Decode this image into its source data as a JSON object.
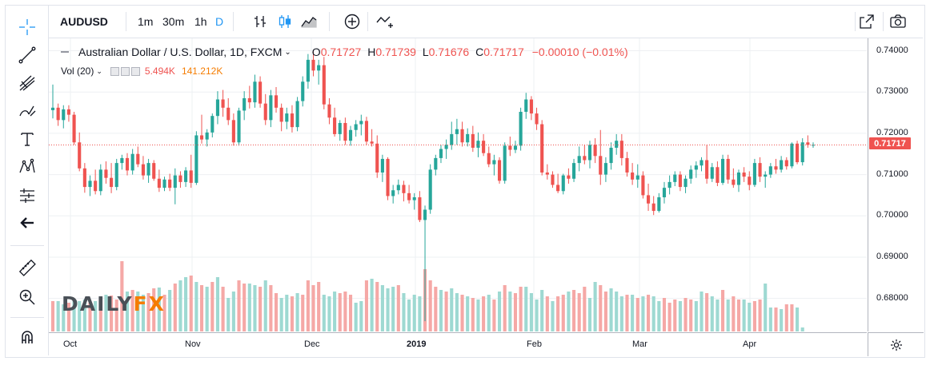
{
  "symbol": "AUDUSD",
  "timeframes": [
    "1m",
    "30m",
    "1h",
    "D"
  ],
  "active_timeframe": "D",
  "legend": {
    "title": "Australian Dollar / U.S. Dollar, 1D, FXCM",
    "o_label": "O",
    "o_value": "0.71727",
    "h_label": "H",
    "h_value": "0.71739",
    "l_label": "L",
    "l_value": "0.71676",
    "c_label": "C",
    "c_value": "0.71717",
    "change": "−0.00010 (−0.01%)"
  },
  "volume_legend": {
    "label": "Vol (20)",
    "value1": "5.494K",
    "value2": "141.212K",
    "value1_color": "#ef5350",
    "value2_color": "#f57c00"
  },
  "logo": {
    "part1": "DAILY",
    "part2": "FX"
  },
  "current_price": "0.71717",
  "price_axis": [
    "0.74000",
    "0.73000",
    "0.72000",
    "0.71000",
    "0.70000",
    "0.69000",
    "0.68000"
  ],
  "time_axis": [
    "Oct",
    "Nov",
    "Dec",
    "2019",
    "Feb",
    "Mar",
    "Apr"
  ],
  "colors": {
    "up": "#26a69a",
    "down": "#ef5350",
    "up_volume": "#9ed9d2",
    "down_volume": "#f5a8a6",
    "grid": "#eef0f3"
  },
  "chart_data": {
    "type": "candlestick",
    "title": "Australian Dollar / U.S. Dollar, 1D, FXCM",
    "y_range": [
      0.672,
      0.743
    ],
    "ohlc": [
      [
        0.7256,
        0.7318,
        0.7236,
        0.7262
      ],
      [
        0.7262,
        0.7272,
        0.7218,
        0.7232
      ],
      [
        0.7232,
        0.7268,
        0.7212,
        0.7258
      ],
      [
        0.7258,
        0.7268,
        0.7228,
        0.7245
      ],
      [
        0.7245,
        0.7252,
        0.7172,
        0.7178
      ],
      [
        0.7178,
        0.7202,
        0.7108,
        0.7115
      ],
      [
        0.7115,
        0.7128,
        0.7056,
        0.707
      ],
      [
        0.707,
        0.7098,
        0.7048,
        0.7085
      ],
      [
        0.7085,
        0.7112,
        0.7052,
        0.706
      ],
      [
        0.706,
        0.7125,
        0.705,
        0.7112
      ],
      [
        0.7112,
        0.7132,
        0.7078,
        0.7092
      ],
      [
        0.7092,
        0.7128,
        0.7055,
        0.707
      ],
      [
        0.707,
        0.7138,
        0.7062,
        0.7128
      ],
      [
        0.7128,
        0.7148,
        0.7112,
        0.714
      ],
      [
        0.714,
        0.7152,
        0.7098,
        0.711
      ],
      [
        0.711,
        0.7162,
        0.71,
        0.715
      ],
      [
        0.715,
        0.7168,
        0.7118,
        0.7125
      ],
      [
        0.7125,
        0.7145,
        0.7088,
        0.7098
      ],
      [
        0.7098,
        0.7138,
        0.708,
        0.7128
      ],
      [
        0.7128,
        0.7135,
        0.7085,
        0.709
      ],
      [
        0.709,
        0.7112,
        0.7058,
        0.7068
      ],
      [
        0.7068,
        0.7095,
        0.706,
        0.7088
      ],
      [
        0.7088,
        0.7102,
        0.706,
        0.7068
      ],
      [
        0.7068,
        0.7115,
        0.7028,
        0.7098
      ],
      [
        0.7098,
        0.7108,
        0.7068,
        0.7082
      ],
      [
        0.7082,
        0.7118,
        0.707,
        0.711
      ],
      [
        0.711,
        0.7148,
        0.7068,
        0.708
      ],
      [
        0.708,
        0.7205,
        0.7075,
        0.7195
      ],
      [
        0.7195,
        0.7245,
        0.7175,
        0.7185
      ],
      [
        0.7185,
        0.721,
        0.7168,
        0.7202
      ],
      [
        0.7202,
        0.7248,
        0.719,
        0.7242
      ],
      [
        0.7242,
        0.7302,
        0.7222,
        0.7282
      ],
      [
        0.7282,
        0.7305,
        0.724,
        0.7262
      ],
      [
        0.7262,
        0.7285,
        0.722,
        0.7232
      ],
      [
        0.7232,
        0.7248,
        0.717,
        0.7178
      ],
      [
        0.7178,
        0.7262,
        0.717,
        0.7255
      ],
      [
        0.7255,
        0.7302,
        0.7232,
        0.7285
      ],
      [
        0.7285,
        0.7315,
        0.726,
        0.7275
      ],
      [
        0.7275,
        0.7342,
        0.7262,
        0.7325
      ],
      [
        0.7325,
        0.7338,
        0.7262,
        0.7272
      ],
      [
        0.7272,
        0.7295,
        0.722,
        0.7232
      ],
      [
        0.7232,
        0.7305,
        0.7215,
        0.7292
      ],
      [
        0.7292,
        0.7312,
        0.725,
        0.7262
      ],
      [
        0.7262,
        0.7272,
        0.7205,
        0.7228
      ],
      [
        0.7228,
        0.7262,
        0.721,
        0.7248
      ],
      [
        0.7248,
        0.7268,
        0.7202,
        0.7215
      ],
      [
        0.7215,
        0.7288,
        0.7205,
        0.7278
      ],
      [
        0.7278,
        0.7338,
        0.7265,
        0.7325
      ],
      [
        0.7325,
        0.7392,
        0.7308,
        0.7378
      ],
      [
        0.7378,
        0.7398,
        0.7338,
        0.7352
      ],
      [
        0.7352,
        0.7378,
        0.7318,
        0.7365
      ],
      [
        0.7365,
        0.7385,
        0.7258,
        0.727
      ],
      [
        0.727,
        0.7285,
        0.7222,
        0.7238
      ],
      [
        0.7238,
        0.7262,
        0.7192,
        0.7198
      ],
      [
        0.7198,
        0.7232,
        0.7182,
        0.7225
      ],
      [
        0.7225,
        0.7238,
        0.7172,
        0.7182
      ],
      [
        0.7182,
        0.7218,
        0.717,
        0.7208
      ],
      [
        0.7208,
        0.7232,
        0.7192,
        0.7222
      ],
      [
        0.7222,
        0.7245,
        0.7195,
        0.723
      ],
      [
        0.723,
        0.724,
        0.7172,
        0.718
      ],
      [
        0.718,
        0.721,
        0.7168,
        0.7175
      ],
      [
        0.7175,
        0.7195,
        0.7092,
        0.7105
      ],
      [
        0.7105,
        0.7148,
        0.7082,
        0.7138
      ],
      [
        0.7138,
        0.7142,
        0.7038,
        0.7048
      ],
      [
        0.7048,
        0.7075,
        0.703,
        0.7062
      ],
      [
        0.7062,
        0.7088,
        0.7052,
        0.7075
      ],
      [
        0.7075,
        0.7085,
        0.7035,
        0.7055
      ],
      [
        0.7055,
        0.7075,
        0.703,
        0.7038
      ],
      [
        0.7038,
        0.7055,
        0.7015,
        0.7045
      ],
      [
        0.7045,
        0.706,
        0.6985,
        0.699
      ],
      [
        0.699,
        0.7025,
        0.6745,
        0.7015
      ],
      [
        0.7015,
        0.7125,
        0.7005,
        0.7112
      ],
      [
        0.7112,
        0.7148,
        0.7098,
        0.714
      ],
      [
        0.714,
        0.7172,
        0.7128,
        0.7162
      ],
      [
        0.7162,
        0.7185,
        0.7138,
        0.7172
      ],
      [
        0.7172,
        0.7228,
        0.716,
        0.7198
      ],
      [
        0.7198,
        0.7235,
        0.7172,
        0.721
      ],
      [
        0.721,
        0.7228,
        0.7168,
        0.7178
      ],
      [
        0.7178,
        0.7212,
        0.7168,
        0.7198
      ],
      [
        0.7198,
        0.7218,
        0.7155,
        0.7165
      ],
      [
        0.7165,
        0.7202,
        0.7142,
        0.7182
      ],
      [
        0.7182,
        0.7198,
        0.7145,
        0.7152
      ],
      [
        0.7152,
        0.7168,
        0.7118,
        0.7125
      ],
      [
        0.7125,
        0.7148,
        0.7098,
        0.7135
      ],
      [
        0.7135,
        0.7142,
        0.7078,
        0.7085
      ],
      [
        0.7085,
        0.7178,
        0.7078,
        0.717
      ],
      [
        0.717,
        0.7192,
        0.7145,
        0.716
      ],
      [
        0.716,
        0.7182,
        0.7152,
        0.717
      ],
      [
        0.717,
        0.7262,
        0.7158,
        0.7252
      ],
      [
        0.7252,
        0.7298,
        0.7235,
        0.7282
      ],
      [
        0.7282,
        0.729,
        0.7232,
        0.7248
      ],
      [
        0.7248,
        0.7262,
        0.7208,
        0.7222
      ],
      [
        0.7222,
        0.7232,
        0.7098,
        0.7105
      ],
      [
        0.7105,
        0.7125,
        0.7088,
        0.71
      ],
      [
        0.71,
        0.7108,
        0.7068,
        0.7075
      ],
      [
        0.7075,
        0.7102,
        0.7055,
        0.706
      ],
      [
        0.706,
        0.7102,
        0.7052,
        0.7098
      ],
      [
        0.7098,
        0.7115,
        0.7078,
        0.709
      ],
      [
        0.709,
        0.7138,
        0.7082,
        0.7128
      ],
      [
        0.7128,
        0.7168,
        0.7108,
        0.7145
      ],
      [
        0.7145,
        0.7172,
        0.7125,
        0.7135
      ],
      [
        0.7135,
        0.7182,
        0.7115,
        0.7172
      ],
      [
        0.7172,
        0.7188,
        0.7128,
        0.7145
      ],
      [
        0.7145,
        0.7208,
        0.7075,
        0.71
      ],
      [
        0.71,
        0.7142,
        0.7082,
        0.7128
      ],
      [
        0.7128,
        0.7178,
        0.7112,
        0.7165
      ],
      [
        0.7165,
        0.7198,
        0.7148,
        0.7182
      ],
      [
        0.7182,
        0.7198,
        0.7122,
        0.714
      ],
      [
        0.714,
        0.7155,
        0.7095,
        0.7105
      ],
      [
        0.7105,
        0.7128,
        0.7075,
        0.7088
      ],
      [
        0.7088,
        0.7125,
        0.7068,
        0.7098
      ],
      [
        0.7098,
        0.7108,
        0.7042,
        0.705
      ],
      [
        0.705,
        0.7078,
        0.7012,
        0.703
      ],
      [
        0.703,
        0.7048,
        0.7002,
        0.7012
      ],
      [
        0.7012,
        0.7055,
        0.7008,
        0.7045
      ],
      [
        0.7045,
        0.7082,
        0.703,
        0.7068
      ],
      [
        0.7068,
        0.7098,
        0.7052,
        0.7082
      ],
      [
        0.7082,
        0.7108,
        0.7072,
        0.71
      ],
      [
        0.71,
        0.7108,
        0.706,
        0.707
      ],
      [
        0.707,
        0.7098,
        0.7055,
        0.709
      ],
      [
        0.709,
        0.7122,
        0.7078,
        0.7112
      ],
      [
        0.7112,
        0.7132,
        0.7092,
        0.7122
      ],
      [
        0.7122,
        0.7142,
        0.7108,
        0.7135
      ],
      [
        0.7135,
        0.7172,
        0.7078,
        0.709
      ],
      [
        0.709,
        0.7128,
        0.7082,
        0.7118
      ],
      [
        0.7118,
        0.7132,
        0.7072,
        0.708
      ],
      [
        0.708,
        0.7148,
        0.7075,
        0.7138
      ],
      [
        0.7138,
        0.7148,
        0.7078,
        0.7088
      ],
      [
        0.7088,
        0.7115,
        0.7068,
        0.7075
      ],
      [
        0.7075,
        0.7112,
        0.7058,
        0.7105
      ],
      [
        0.7105,
        0.7118,
        0.7082,
        0.7095
      ],
      [
        0.7095,
        0.7108,
        0.7062,
        0.7075
      ],
      [
        0.7075,
        0.7138,
        0.707,
        0.7128
      ],
      [
        0.7128,
        0.7142,
        0.7082,
        0.7095
      ],
      [
        0.7095,
        0.7108,
        0.7068,
        0.71
      ],
      [
        0.71,
        0.7128,
        0.7092,
        0.712
      ],
      [
        0.712,
        0.7138,
        0.7102,
        0.7112
      ],
      [
        0.7112,
        0.7145,
        0.7105,
        0.7135
      ],
      [
        0.7135,
        0.7142,
        0.7112,
        0.712
      ],
      [
        0.712,
        0.7178,
        0.7115,
        0.7175
      ],
      [
        0.7175,
        0.7182,
        0.7125,
        0.713
      ],
      [
        0.713,
        0.7188,
        0.7122,
        0.7178
      ],
      [
        0.7178,
        0.7195,
        0.7165,
        0.7172
      ],
      [
        0.7172,
        0.7178,
        0.7165,
        0.7172
      ]
    ],
    "volume": [
      [
        38,
        0
      ],
      [
        38,
        1
      ],
      [
        34,
        1
      ],
      [
        36,
        0
      ],
      [
        38,
        1
      ],
      [
        38,
        1
      ],
      [
        40,
        1
      ],
      [
        36,
        0
      ],
      [
        38,
        1
      ],
      [
        40,
        0
      ],
      [
        46,
        1
      ],
      [
        45,
        0
      ],
      [
        40,
        0
      ],
      [
        88,
        0
      ],
      [
        50,
        1
      ],
      [
        52,
        0
      ],
      [
        50,
        1
      ],
      [
        46,
        1
      ],
      [
        48,
        0
      ],
      [
        54,
        0
      ],
      [
        55,
        1
      ],
      [
        46,
        0
      ],
      [
        52,
        1
      ],
      [
        60,
        0
      ],
      [
        64,
        1
      ],
      [
        68,
        1
      ],
      [
        70,
        0
      ],
      [
        62,
        1
      ],
      [
        58,
        0
      ],
      [
        56,
        1
      ],
      [
        62,
        0
      ],
      [
        68,
        1
      ],
      [
        56,
        0
      ],
      [
        42,
        1
      ],
      [
        50,
        1
      ],
      [
        64,
        0
      ],
      [
        60,
        0
      ],
      [
        60,
        1
      ],
      [
        58,
        1
      ],
      [
        56,
        0
      ],
      [
        64,
        1
      ],
      [
        58,
        0
      ],
      [
        48,
        0
      ],
      [
        42,
        1
      ],
      [
        46,
        1
      ],
      [
        44,
        0
      ],
      [
        48,
        1
      ],
      [
        46,
        0
      ],
      [
        64,
        0
      ],
      [
        58,
        0
      ],
      [
        62,
        0
      ],
      [
        46,
        1
      ],
      [
        44,
        1
      ],
      [
        50,
        1
      ],
      [
        48,
        0
      ],
      [
        50,
        0
      ],
      [
        46,
        0
      ],
      [
        36,
        1
      ],
      [
        38,
        1
      ],
      [
        64,
        0
      ],
      [
        66,
        1
      ],
      [
        62,
        0
      ],
      [
        58,
        1
      ],
      [
        54,
        1
      ],
      [
        56,
        1
      ],
      [
        58,
        0
      ],
      [
        48,
        1
      ],
      [
        40,
        1
      ],
      [
        46,
        1
      ],
      [
        44,
        1
      ],
      [
        78,
        0
      ],
      [
        64,
        0
      ],
      [
        56,
        0
      ],
      [
        52,
        1
      ],
      [
        50,
        0
      ],
      [
        54,
        1
      ],
      [
        48,
        1
      ],
      [
        46,
        0
      ],
      [
        44,
        1
      ],
      [
        42,
        0
      ],
      [
        40,
        1
      ],
      [
        44,
        0
      ],
      [
        46,
        1
      ],
      [
        40,
        0
      ],
      [
        50,
        1
      ],
      [
        58,
        0
      ],
      [
        50,
        1
      ],
      [
        48,
        0
      ],
      [
        56,
        0
      ],
      [
        56,
        1
      ],
      [
        48,
        1
      ],
      [
        40,
        1
      ],
      [
        52,
        1
      ],
      [
        44,
        0
      ],
      [
        38,
        1
      ],
      [
        44,
        0
      ],
      [
        46,
        0
      ],
      [
        50,
        1
      ],
      [
        52,
        0
      ],
      [
        48,
        0
      ],
      [
        56,
        0
      ],
      [
        42,
        1
      ],
      [
        62,
        1
      ],
      [
        58,
        0
      ],
      [
        50,
        0
      ],
      [
        54,
        1
      ],
      [
        50,
        1
      ],
      [
        44,
        1
      ],
      [
        46,
        0
      ],
      [
        46,
        1
      ],
      [
        42,
        0
      ],
      [
        44,
        1
      ],
      [
        46,
        0
      ],
      [
        44,
        1
      ],
      [
        38,
        1
      ],
      [
        42,
        0
      ],
      [
        36,
        0
      ],
      [
        40,
        0
      ],
      [
        38,
        1
      ],
      [
        42,
        0
      ],
      [
        40,
        0
      ],
      [
        38,
        1
      ],
      [
        50,
        1
      ],
      [
        48,
        0
      ],
      [
        44,
        1
      ],
      [
        40,
        1
      ],
      [
        52,
        0
      ],
      [
        40,
        1
      ],
      [
        44,
        0
      ],
      [
        40,
        0
      ],
      [
        40,
        1
      ],
      [
        36,
        1
      ],
      [
        38,
        0
      ],
      [
        40,
        0
      ],
      [
        60,
        1
      ],
      [
        30,
        1
      ],
      [
        30,
        0
      ],
      [
        28,
        1
      ],
      [
        34,
        0
      ],
      [
        34,
        0
      ],
      [
        30,
        1
      ],
      [
        5,
        1
      ]
    ]
  }
}
